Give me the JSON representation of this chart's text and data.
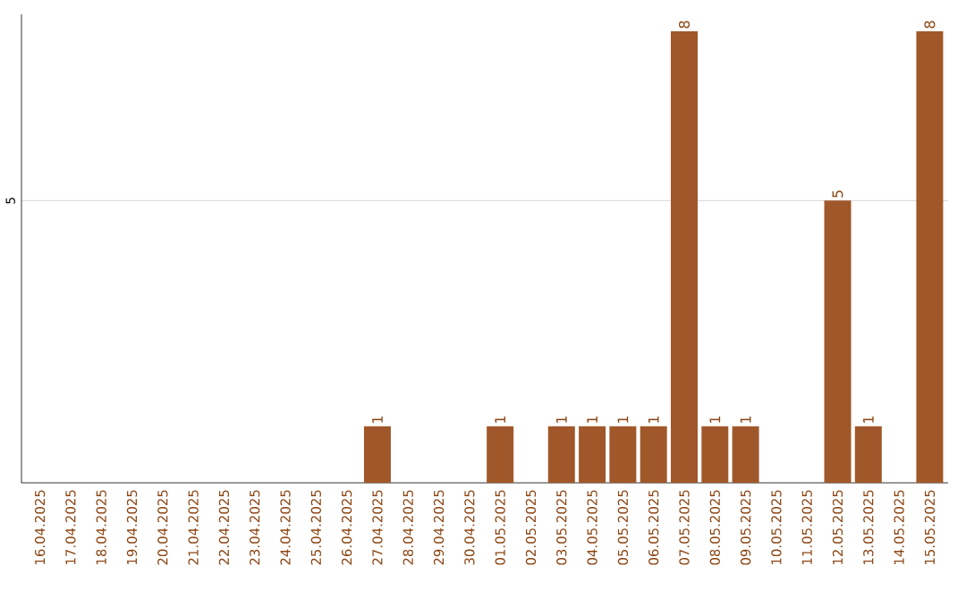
{
  "chart_data": {
    "type": "bar",
    "categories": [
      "16.04.2025",
      "17.04.2025",
      "18.04.2025",
      "19.04.2025",
      "20.04.2025",
      "21.04.2025",
      "22.04.2025",
      "23.04.2025",
      "24.04.2025",
      "25.04.2025",
      "26.04.2025",
      "27.04.2025",
      "28.04.2025",
      "29.04.2025",
      "30.04.2025",
      "01.05.2025",
      "02.05.2025",
      "03.05.2025",
      "04.05.2025",
      "05.05.2025",
      "06.05.2025",
      "07.05.2025",
      "08.05.2025",
      "09.05.2025",
      "10.05.2025",
      "11.05.2025",
      "12.05.2025",
      "13.05.2025",
      "14.05.2025",
      "15.05.2025"
    ],
    "values": [
      0,
      0,
      0,
      0,
      0,
      0,
      0,
      0,
      0,
      0,
      0,
      1,
      0,
      0,
      0,
      1,
      0,
      1,
      1,
      1,
      1,
      8,
      1,
      1,
      0,
      0,
      5,
      1,
      0,
      8
    ],
    "value_labels": [
      null,
      null,
      null,
      null,
      null,
      null,
      null,
      null,
      null,
      null,
      null,
      "1",
      null,
      null,
      null,
      "1",
      null,
      "1",
      "1",
      "1",
      "1",
      "8",
      "1",
      "1",
      null,
      null,
      "5",
      "1",
      null,
      "8"
    ],
    "color": "#a0582a",
    "ylim": [
      0,
      8.3
    ],
    "yticks": [
      5
    ],
    "grid": "y"
  }
}
